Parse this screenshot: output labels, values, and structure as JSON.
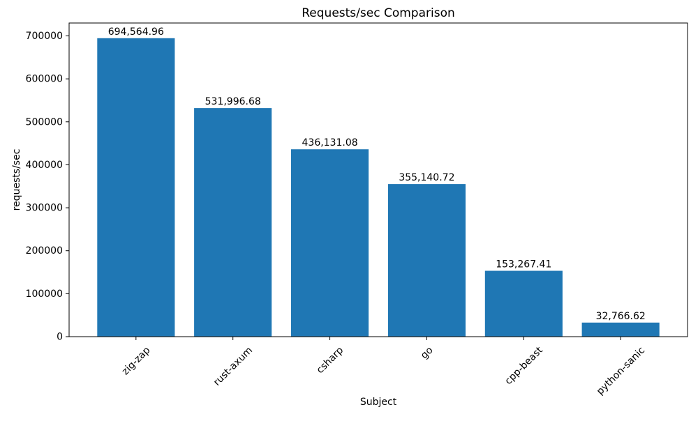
{
  "chart_data": {
    "type": "bar",
    "title": "Requests/sec Comparison",
    "xlabel": "Subject",
    "ylabel": "requests/sec",
    "categories": [
      "zig-zap",
      "rust-axum",
      "csharp",
      "go",
      "cpp-beast",
      "python-sanic"
    ],
    "values": [
      694564.96,
      531996.68,
      436131.08,
      355140.72,
      153267.41,
      32766.62
    ],
    "value_labels": [
      "694,564.96",
      "531,996.68",
      "436,131.08",
      "355,140.72",
      "153,267.41",
      "32,766.62"
    ],
    "yticks": [
      0,
      100000,
      200000,
      300000,
      400000,
      500000,
      600000,
      700000
    ],
    "ytick_labels": [
      "0",
      "100000",
      "200000",
      "300000",
      "400000",
      "500000",
      "600000",
      "700000"
    ],
    "ylim": [
      0,
      730000
    ],
    "bar_color": "#1f77b4",
    "text_color": "#000000",
    "grid": false,
    "legend": "none",
    "x_tick_rotation_deg": 45
  }
}
